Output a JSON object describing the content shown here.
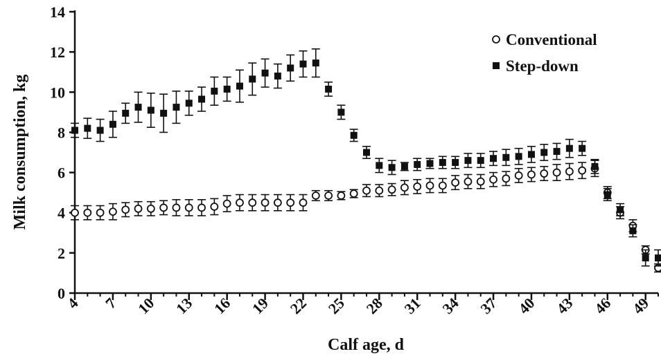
{
  "chart_data": {
    "type": "scatter",
    "title": "",
    "xlabel": "Calf age, d",
    "ylabel": "Milk consumption, kg",
    "xlim": [
      4,
      50
    ],
    "ylim": [
      0,
      14
    ],
    "x_ticks": [
      4,
      7,
      10,
      13,
      16,
      19,
      22,
      25,
      28,
      31,
      34,
      37,
      40,
      43,
      46,
      49
    ],
    "y_ticks": [
      0,
      2,
      4,
      6,
      8,
      10,
      12,
      14
    ],
    "legend_position": "top-right",
    "grid": false,
    "series": [
      {
        "name": "Conventional",
        "marker": "open-circle",
        "x": [
          4,
          5,
          6,
          7,
          8,
          9,
          10,
          11,
          12,
          13,
          14,
          15,
          16,
          17,
          18,
          19,
          20,
          21,
          22,
          23,
          24,
          25,
          26,
          27,
          28,
          29,
          30,
          31,
          32,
          33,
          34,
          35,
          36,
          37,
          38,
          39,
          40,
          41,
          42,
          43,
          44,
          45,
          46,
          47,
          48,
          49,
          50
        ],
        "y": [
          4.0,
          4.0,
          4.0,
          4.05,
          4.15,
          4.2,
          4.2,
          4.25,
          4.25,
          4.25,
          4.25,
          4.3,
          4.45,
          4.5,
          4.5,
          4.5,
          4.5,
          4.5,
          4.5,
          4.85,
          4.85,
          4.85,
          4.95,
          5.1,
          5.1,
          5.15,
          5.25,
          5.3,
          5.35,
          5.35,
          5.5,
          5.55,
          5.55,
          5.65,
          5.7,
          5.85,
          5.9,
          5.95,
          6.0,
          6.05,
          6.1,
          6.2,
          5.0,
          4.0,
          3.35,
          2.15,
          1.25
        ],
        "err": [
          0.35,
          0.35,
          0.35,
          0.4,
          0.35,
          0.35,
          0.35,
          0.35,
          0.4,
          0.4,
          0.4,
          0.4,
          0.4,
          0.4,
          0.4,
          0.4,
          0.4,
          0.4,
          0.4,
          0.25,
          0.25,
          0.2,
          0.2,
          0.3,
          0.3,
          0.3,
          0.35,
          0.35,
          0.35,
          0.35,
          0.35,
          0.35,
          0.35,
          0.35,
          0.35,
          0.35,
          0.35,
          0.35,
          0.4,
          0.4,
          0.4,
          0.4,
          0.3,
          0.3,
          0.3,
          0.2,
          0.2
        ]
      },
      {
        "name": "Step-down",
        "marker": "filled-square",
        "x": [
          4,
          5,
          6,
          7,
          8,
          9,
          10,
          11,
          12,
          13,
          14,
          15,
          16,
          17,
          18,
          19,
          20,
          21,
          22,
          23,
          24,
          25,
          26,
          27,
          28,
          29,
          30,
          31,
          32,
          33,
          34,
          35,
          36,
          37,
          38,
          39,
          40,
          41,
          42,
          43,
          44,
          45,
          46,
          47,
          48,
          49,
          50
        ],
        "y": [
          8.1,
          8.2,
          8.1,
          8.4,
          8.95,
          9.25,
          9.1,
          8.95,
          9.25,
          9.45,
          9.65,
          10.05,
          10.15,
          10.3,
          10.65,
          10.95,
          10.8,
          11.2,
          11.4,
          11.45,
          10.15,
          9.0,
          7.85,
          7.0,
          6.35,
          6.25,
          6.3,
          6.4,
          6.45,
          6.5,
          6.5,
          6.6,
          6.6,
          6.7,
          6.75,
          6.8,
          6.9,
          7.0,
          7.05,
          7.2,
          7.2,
          6.3,
          4.9,
          4.15,
          3.1,
          1.75,
          1.75
        ],
        "err": [
          0.35,
          0.5,
          0.55,
          0.65,
          0.5,
          0.75,
          0.85,
          0.95,
          0.8,
          0.6,
          0.6,
          0.7,
          0.6,
          0.8,
          0.8,
          0.7,
          0.6,
          0.65,
          0.65,
          0.7,
          0.35,
          0.35,
          0.3,
          0.3,
          0.35,
          0.35,
          0.2,
          0.3,
          0.25,
          0.3,
          0.3,
          0.35,
          0.35,
          0.35,
          0.4,
          0.4,
          0.4,
          0.4,
          0.4,
          0.45,
          0.35,
          0.35,
          0.3,
          0.3,
          0.3,
          0.4,
          0.4
        ]
      }
    ]
  }
}
